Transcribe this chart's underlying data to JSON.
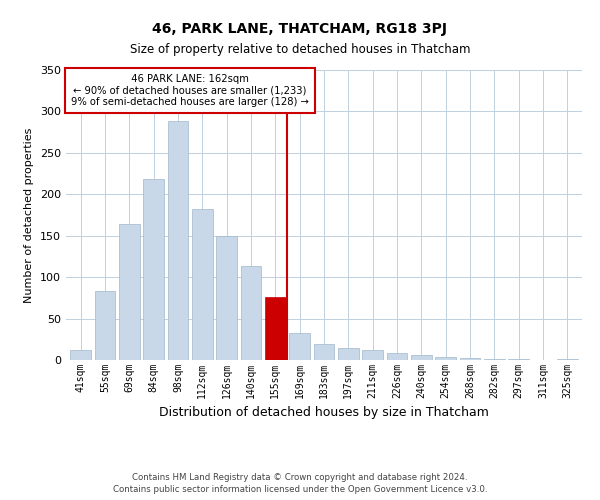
{
  "title": "46, PARK LANE, THATCHAM, RG18 3PJ",
  "subtitle": "Size of property relative to detached houses in Thatcham",
  "xlabel": "Distribution of detached houses by size in Thatcham",
  "ylabel": "Number of detached properties",
  "bar_labels": [
    "41sqm",
    "55sqm",
    "69sqm",
    "84sqm",
    "98sqm",
    "112sqm",
    "126sqm",
    "140sqm",
    "155sqm",
    "169sqm",
    "183sqm",
    "197sqm",
    "211sqm",
    "226sqm",
    "240sqm",
    "254sqm",
    "268sqm",
    "282sqm",
    "297sqm",
    "311sqm",
    "325sqm"
  ],
  "bar_values": [
    12,
    83,
    164,
    218,
    288,
    182,
    150,
    114,
    76,
    33,
    19,
    14,
    12,
    9,
    6,
    4,
    2,
    1,
    1,
    0,
    1
  ],
  "bar_color": "#c8d8e8",
  "bar_edge_color": "#a0b8cc",
  "highlight_bar_index": 8,
  "highlight_color": "#cc0000",
  "vline_x": 8.5,
  "annotation_title": "46 PARK LANE: 162sqm",
  "annotation_line1": "← 90% of detached houses are smaller (1,233)",
  "annotation_line2": "9% of semi-detached houses are larger (128) →",
  "annotation_box_color": "#ffffff",
  "annotation_box_edge": "#cc0000",
  "ylim": [
    0,
    350
  ],
  "yticks": [
    0,
    50,
    100,
    150,
    200,
    250,
    300,
    350
  ],
  "footer1": "Contains HM Land Registry data © Crown copyright and database right 2024.",
  "footer2": "Contains public sector information licensed under the Open Government Licence v3.0.",
  "bg_color": "#ffffff",
  "grid_color": "#c0d0e0"
}
